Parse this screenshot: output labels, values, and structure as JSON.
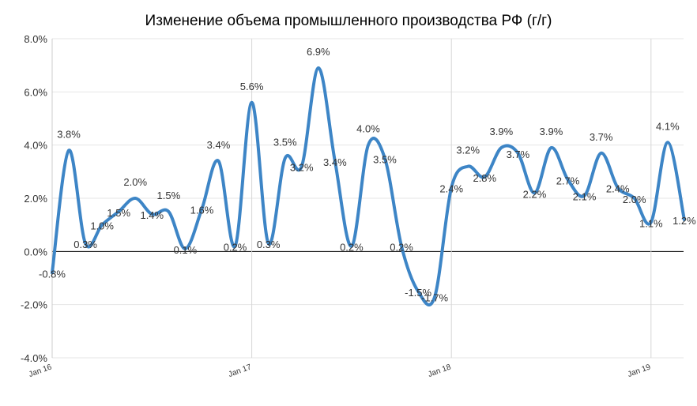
{
  "chart_data": {
    "type": "line",
    "title": "Изменение объема промышленного производства РФ (г/г)",
    "xlabel": "",
    "ylabel": "",
    "ylim": [
      -4,
      8
    ],
    "y_ticks": [
      "8.0%",
      "6.0%",
      "4.0%",
      "2.0%",
      "0.0%",
      "-2.0%",
      "-4.0%"
    ],
    "x_ticks": [
      {
        "label": "Jan 16",
        "month": 0
      },
      {
        "label": "Jan 17",
        "month": 12
      },
      {
        "label": "Jan 18",
        "month": 24
      },
      {
        "label": "Jan 19",
        "month": 36
      }
    ],
    "grid": true,
    "legend": "none",
    "color": "#3d85c6",
    "series": [
      {
        "values": [
          -0.8,
          3.8,
          0.3,
          1.0,
          1.5,
          2.0,
          1.4,
          1.5,
          0.1,
          1.6,
          3.4,
          0.2,
          5.6,
          0.3,
          3.5,
          3.2,
          6.9,
          3.4,
          0.2,
          4.0,
          3.5,
          0.2,
          -1.5,
          -1.7,
          2.4,
          3.2,
          2.8,
          3.9,
          3.7,
          2.2,
          3.9,
          2.7,
          2.1,
          3.7,
          2.4,
          2.0,
          1.1,
          4.1,
          1.2
        ],
        "labels": [
          "-0.8%",
          "3.8%",
          "0.3%",
          "1.0%",
          "1.5%",
          "2.0%",
          "1.4%",
          "1.5%",
          "0.1%",
          "1.6%",
          "3.4%",
          "0.2%",
          "5.6%",
          "0.3%",
          "3.5%",
          "3.2%",
          "6.9%",
          "3.4%",
          "0.2%",
          "4.0%",
          "3.5%",
          "0.2%",
          "-1.5%",
          "-1.7%",
          "2.4%",
          "3.2%",
          "2.8%",
          "3.9%",
          "3.7%",
          "2.2%",
          "3.9%",
          "2.7%",
          "2.1%",
          "3.7%",
          "2.4%",
          "2.0%",
          "1.1%",
          "4.1%",
          "1.2%"
        ]
      }
    ]
  }
}
